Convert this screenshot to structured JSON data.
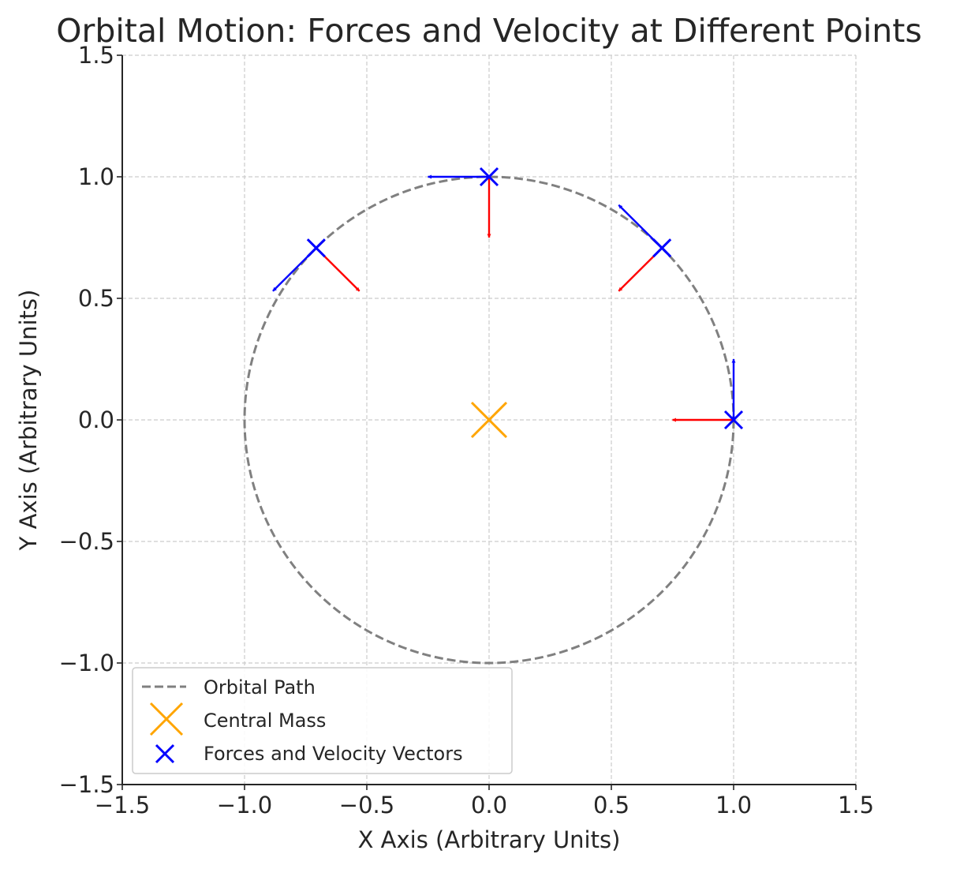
{
  "chart_data": {
    "type": "scatter",
    "title": "Orbital Motion: Forces and Velocity at Different Points",
    "xlabel": "X Axis (Arbitrary Units)",
    "ylabel": "Y Axis (Arbitrary Units)",
    "xlim": [
      -1.5,
      1.5
    ],
    "ylim": [
      -1.5,
      1.5
    ],
    "xticks": [
      -1.5,
      -1.0,
      -0.5,
      0.0,
      0.5,
      1.0,
      1.5
    ],
    "yticks": [
      -1.5,
      -1.0,
      -0.5,
      0.0,
      0.5,
      1.0,
      1.5
    ],
    "xtick_labels": [
      "−1.5",
      "−1.0",
      "−0.5",
      "0.0",
      "0.5",
      "1.0",
      "1.5"
    ],
    "ytick_labels": [
      "−1.5",
      "−1.0",
      "−0.5",
      "0.0",
      "0.5",
      "1.0",
      "1.5"
    ],
    "grid": true,
    "legend_position": "lower-left",
    "series": [
      {
        "name": "Orbital Path",
        "kind": "line",
        "style": "dashed",
        "color": "#808080",
        "radius": 1.0,
        "center": [
          0,
          0
        ]
      },
      {
        "name": "Central Mass",
        "kind": "marker",
        "marker": "x",
        "color": "#FFA500",
        "points": [
          [
            0,
            0
          ]
        ]
      },
      {
        "name": "Forces and Velocity Vectors",
        "kind": "marker",
        "marker": "x",
        "color": "#0000FF",
        "points": [
          [
            1.0,
            0.0
          ],
          [
            0.707,
            0.707
          ],
          [
            0.0,
            1.0
          ],
          [
            -0.707,
            0.707
          ]
        ]
      }
    ],
    "force_vectors": {
      "color": "#FF0000",
      "vectors": [
        {
          "from": [
            1.0,
            0.0
          ],
          "d": [
            -0.25,
            0.0
          ]
        },
        {
          "from": [
            0.707,
            0.707
          ],
          "d": [
            -0.177,
            -0.177
          ]
        },
        {
          "from": [
            0.0,
            1.0
          ],
          "d": [
            0.0,
            -0.25
          ]
        },
        {
          "from": [
            -0.707,
            0.707
          ],
          "d": [
            0.177,
            -0.177
          ]
        }
      ]
    },
    "velocity_vectors": {
      "color": "#0000FF",
      "vectors": [
        {
          "from": [
            1.0,
            0.0
          ],
          "d": [
            0.0,
            0.25
          ]
        },
        {
          "from": [
            0.707,
            0.707
          ],
          "d": [
            -0.177,
            0.177
          ]
        },
        {
          "from": [
            0.0,
            1.0
          ],
          "d": [
            -0.25,
            0.0
          ]
        },
        {
          "from": [
            -0.707,
            0.707
          ],
          "d": [
            -0.177,
            -0.177
          ]
        }
      ]
    }
  }
}
